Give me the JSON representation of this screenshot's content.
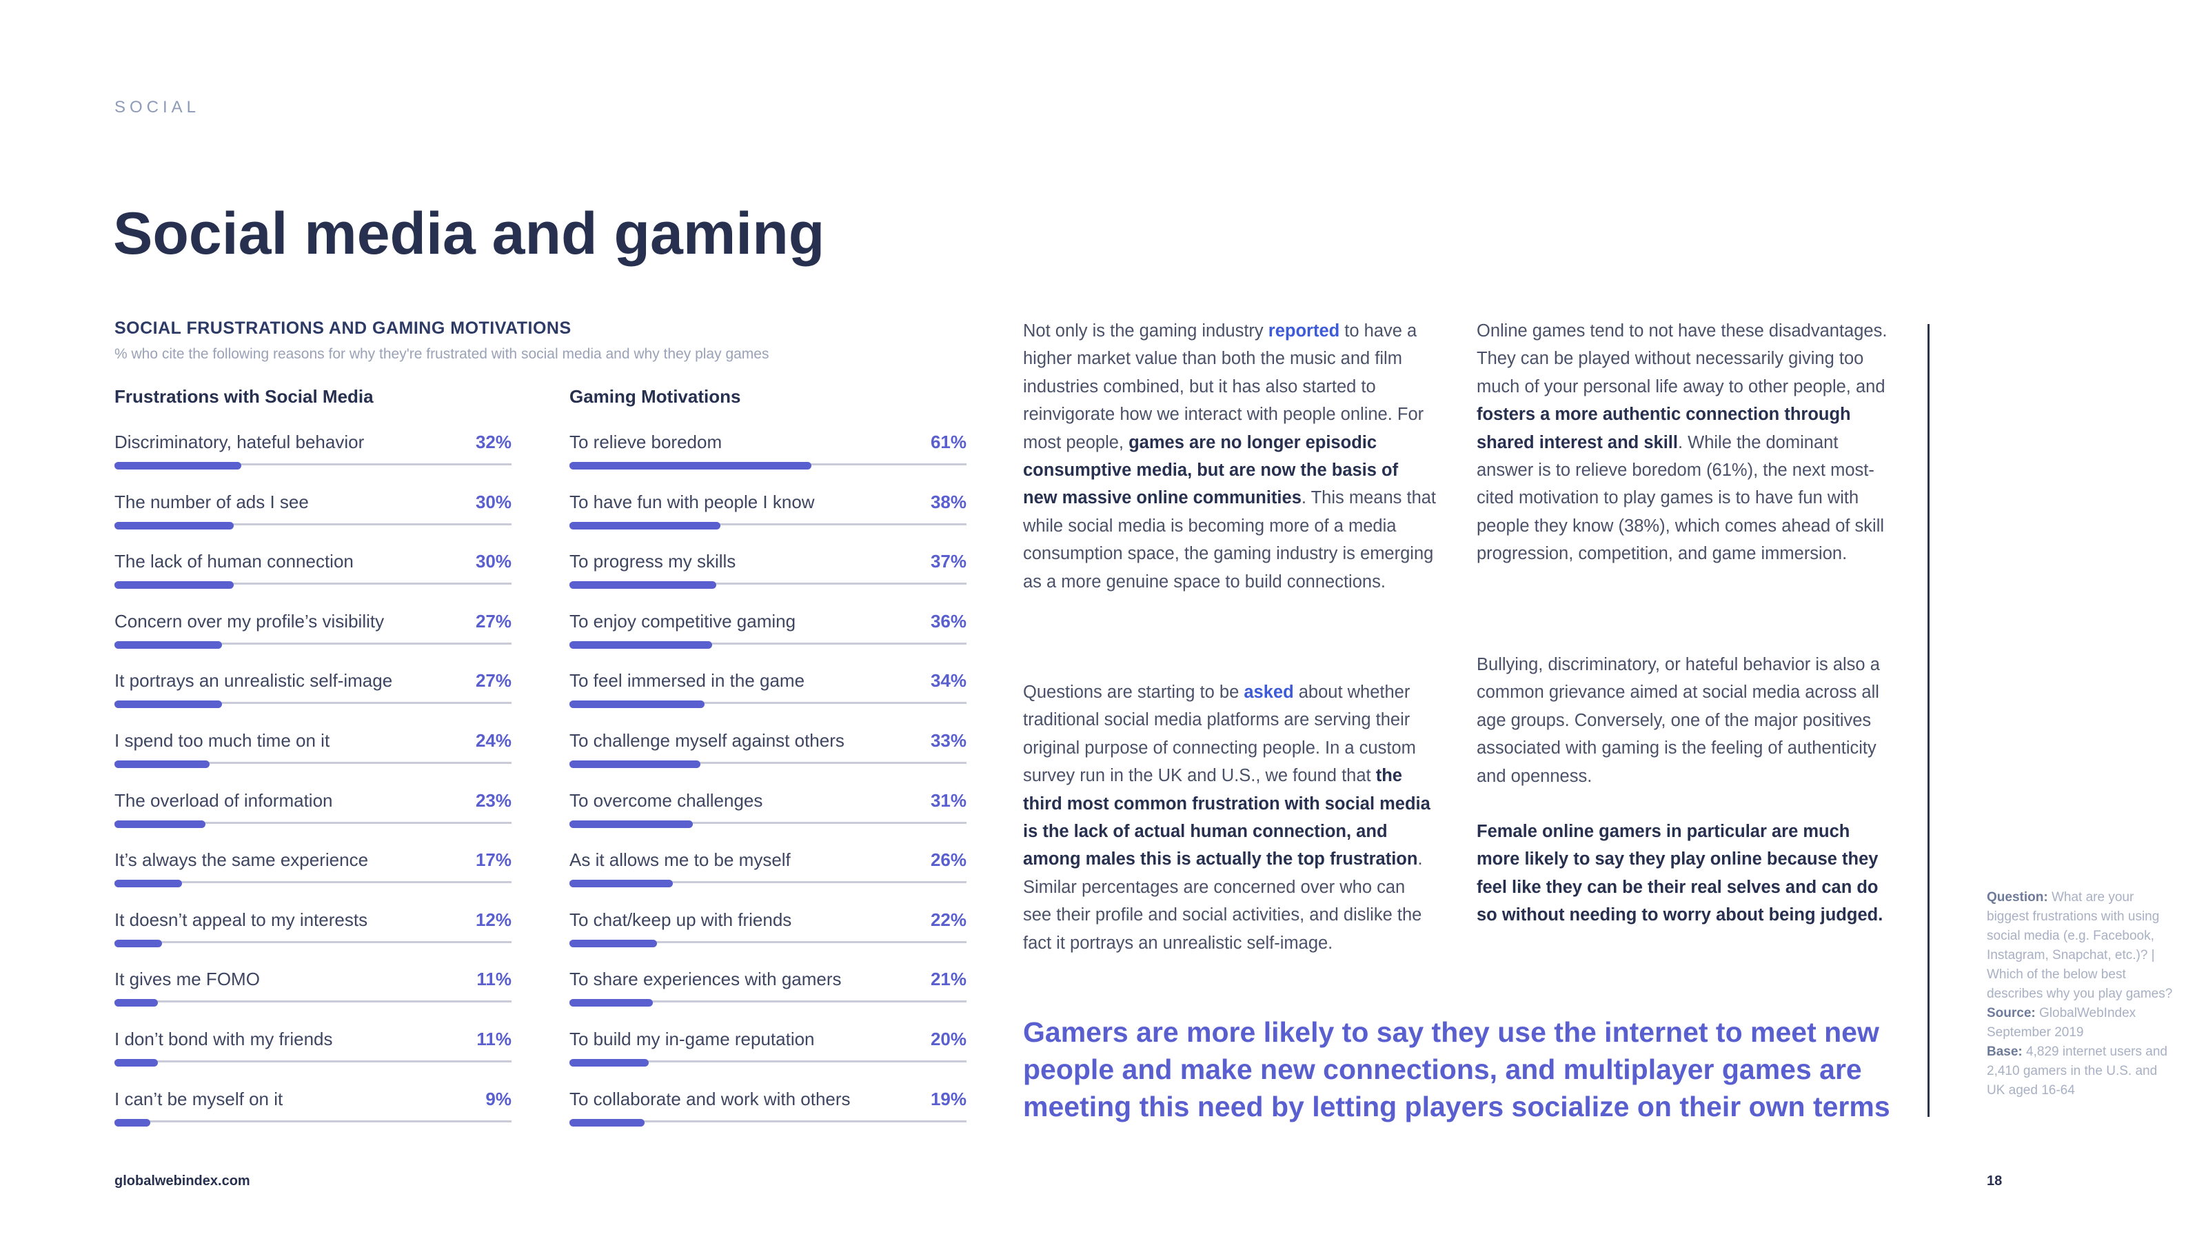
{
  "section": "SOCIAL",
  "title": "Social media and gaming",
  "chart_data": {
    "type": "bar",
    "title": "SOCIAL FRUSTRATIONS AND GAMING MOTIVATIONS",
    "subtitle": "% who cite the following reasons for why they're frustrated with social media and why they play games",
    "unit": "%",
    "ylim": [
      0,
      100
    ],
    "groups": [
      {
        "name": "Frustrations with Social Media",
        "categories": [
          "Discriminatory, hateful behavior",
          "The number of ads I see",
          "The lack of human connection",
          "Concern over my profile’s visibility",
          "It portrays an unrealistic self-image",
          "I spend too much time on it",
          "The overload of information",
          "It’s always the same experience",
          "It doesn’t appeal to my interests",
          "It gives me FOMO",
          "I don’t bond with my friends",
          "I can’t be myself on it"
        ],
        "values": [
          32,
          30,
          30,
          27,
          27,
          24,
          23,
          17,
          12,
          11,
          11,
          9
        ],
        "value_labels": [
          "32%",
          "30%",
          "30%",
          "27%",
          "27%",
          "24%",
          "23%",
          "17%",
          "12%",
          "11%",
          "11%",
          "9%"
        ]
      },
      {
        "name": "Gaming Motivations",
        "categories": [
          "To relieve boredom",
          "To have fun with people I know",
          "To progress my skills",
          "To enjoy competitive gaming",
          "To feel immersed in the game",
          "To challenge myself against others",
          "To overcome challenges",
          "As it allows me to be myself",
          "To chat/keep up with friends",
          "To share experiences with gamers",
          "To build my in-game reputation",
          "To collaborate and work with others"
        ],
        "values": [
          61,
          38,
          37,
          36,
          34,
          33,
          31,
          26,
          22,
          21,
          20,
          19
        ],
        "value_labels": [
          "61%",
          "38%",
          "37%",
          "36%",
          "34%",
          "33%",
          "31%",
          "26%",
          "22%",
          "21%",
          "20%",
          "19%"
        ]
      }
    ]
  },
  "body": {
    "p1": [
      {
        "t": "Not only is the gaming industry "
      },
      {
        "t": "reported",
        "s": "link"
      },
      {
        "t": " to have a higher market value than both the music and film industries combined, but it has also started to reinvigorate how we interact with people online. For most people, "
      },
      {
        "t": "games are no longer episodic consumptive media, but are now the basis of new massive online communities",
        "s": "b"
      },
      {
        "t": ". This means that while social media is becoming more of a media consumption space, the gaming industry is emerging as a more genuine space to build connections."
      }
    ],
    "p2": [
      {
        "t": "Questions are starting to be "
      },
      {
        "t": "asked",
        "s": "link"
      },
      {
        "t": " about whether traditional social media platforms are serving their original purpose of connecting people. In a custom survey run in the UK and U.S., we found that "
      },
      {
        "t": "the third most common frustration with social media is the lack of actual human connection, and among males this is actually the top frustration",
        "s": "b"
      },
      {
        "t": ". Similar percentages are concerned over who can see their profile and social activities, and dislike the fact it portrays an unrealistic self-image."
      }
    ],
    "p3": [
      {
        "t": "Online games tend to not have these disadvantages. They can be played without necessarily giving too much of your personal life away to other people, and "
      },
      {
        "t": "fosters a more authentic connection through shared interest and skill",
        "s": "b"
      },
      {
        "t": ". While the dominant answer is to relieve boredom (61%), the next most-cited motivation to play games is to have fun with people they know (38%), which comes ahead of skill progression, competition, and game immersion."
      }
    ],
    "p4": [
      {
        "t": "Bullying, discriminatory, or hateful behavior is also a common grievance aimed at social media across all age groups. Conversely, one of the major positives associated with gaming is the feeling of authenticity and openness."
      }
    ],
    "p5": [
      {
        "t": "Female online gamers in particular are much more likely to say they play online because they feel like they can be their real selves and can do so without needing to worry about being judged.",
        "s": "b"
      }
    ]
  },
  "callout": "Gamers are more likely to say they use the internet to meet new people and make new connections, and multiplayer games are meeting this need by letting players socialize on their own terms",
  "notes": [
    {
      "label": "Question:",
      "text": " What are your biggest frustrations with using social media (e.g. Facebook, Instagram, Snapchat, etc.)? | Which of the below best describes why you play games?"
    },
    {
      "label": "Source:",
      "text": " GlobalWebIndex September 2019"
    },
    {
      "label": "Base:",
      "text": " 4,829 internet users and 2,410 gamers in the U.S. and UK aged 16-64"
    }
  ],
  "footer": {
    "url": "globalwebindex.com",
    "page": "18"
  },
  "colors": {
    "accent": "#5a5fd0",
    "title": "#27304f",
    "link": "#3d5bd8",
    "track": "#c9ccd8"
  }
}
